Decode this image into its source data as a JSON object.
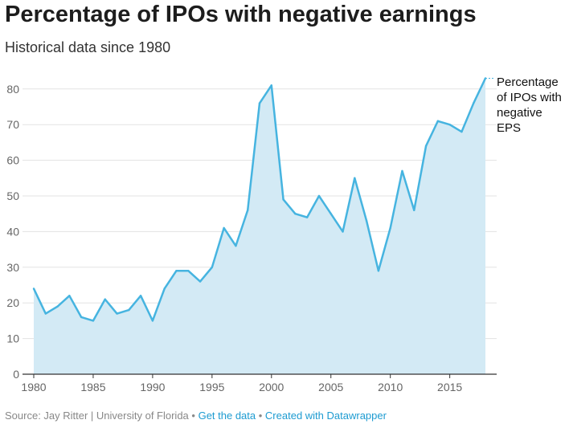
{
  "title": "Percentage of IPOs with negative earnings",
  "subtitle": "Historical data since 1980",
  "footer": {
    "source": "Source: Jay Ritter | University of Florida",
    "sep": " • ",
    "get_data": "Get the data",
    "created": "Created with Datawrapper"
  },
  "chart_data": {
    "type": "area",
    "title": "Percentage of IPOs with negative earnings",
    "subtitle": "Historical data since 1980",
    "xlabel": "",
    "ylabel": "",
    "xlim": [
      1980,
      2018
    ],
    "ylim": [
      0,
      85
    ],
    "yticks": [
      0,
      10,
      20,
      30,
      40,
      50,
      60,
      70,
      80
    ],
    "xticks": [
      1980,
      1985,
      1990,
      1995,
      2000,
      2005,
      2010,
      2015
    ],
    "grid": true,
    "color": "#46b4e0",
    "fill": "#d3eaf5",
    "series": [
      {
        "name": "Percentage of IPOs with negative EPS",
        "x": [
          1980,
          1981,
          1982,
          1983,
          1984,
          1985,
          1986,
          1987,
          1988,
          1989,
          1990,
          1991,
          1992,
          1993,
          1994,
          1995,
          1996,
          1997,
          1998,
          1999,
          2000,
          2001,
          2002,
          2003,
          2004,
          2005,
          2006,
          2007,
          2008,
          2009,
          2010,
          2011,
          2012,
          2013,
          2014,
          2015,
          2016,
          2017,
          2018
        ],
        "values": [
          24,
          17,
          19,
          22,
          16,
          15,
          21,
          17,
          18,
          22,
          15,
          24,
          29,
          29,
          26,
          30,
          41,
          36,
          46,
          76,
          81,
          49,
          45,
          44,
          50,
          45,
          40,
          55,
          43,
          29,
          41,
          57,
          46,
          64,
          71,
          70,
          68,
          76,
          83
        ]
      }
    ]
  }
}
